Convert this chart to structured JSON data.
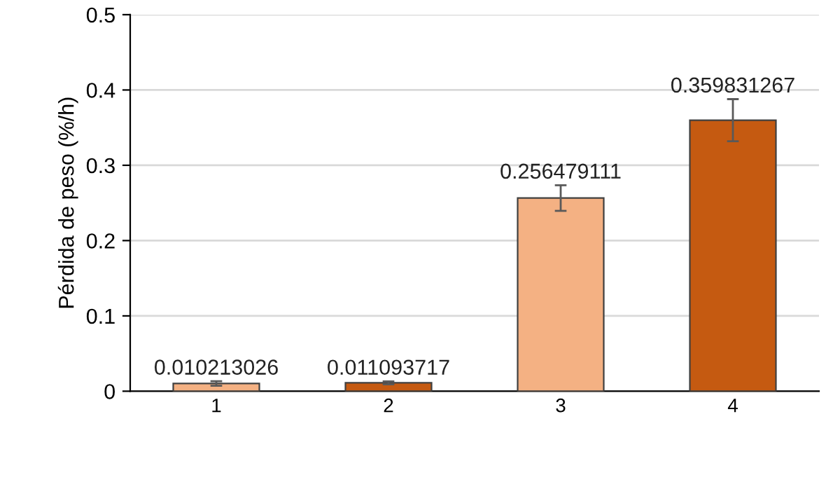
{
  "chart_data": {
    "type": "bar",
    "ylabel": "Pérdida de peso (%/h)",
    "categories": [
      "1",
      "2",
      "3",
      "4"
    ],
    "values": [
      0.010213026,
      0.011093717,
      0.256479111,
      0.359831267
    ],
    "colors": [
      "#f4b183",
      "#c55a11",
      "#f4b183",
      "#c55a11"
    ],
    "errors": [
      0.003,
      0.002,
      0.017,
      0.028
    ],
    "ylim": [
      0,
      0.5
    ],
    "yticks": [
      {
        "value": 0,
        "label": "0"
      },
      0.1,
      0.2,
      0.3,
      0.4,
      0.5
    ],
    "grid": "y",
    "data_labels": true,
    "legend": false
  }
}
